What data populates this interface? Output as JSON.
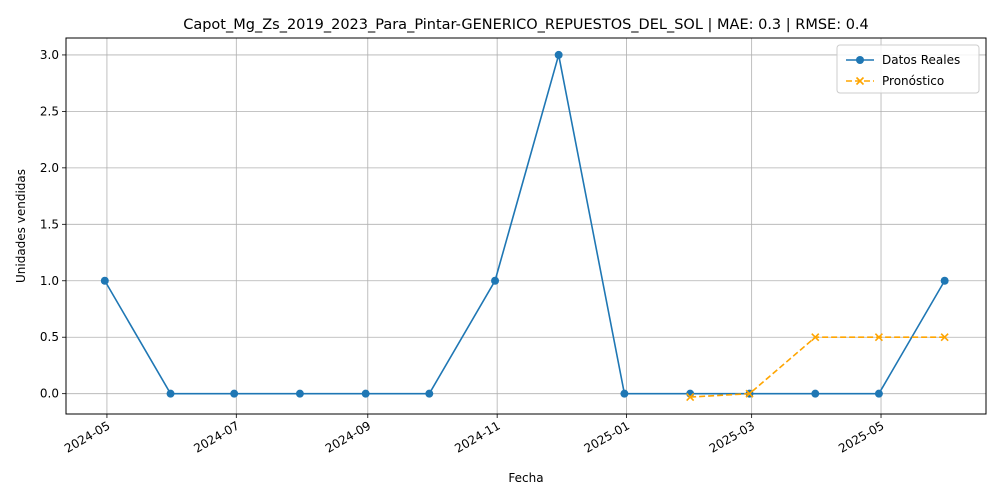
{
  "chart_data": {
    "type": "line",
    "title": "Capot_Mg_Zs_2019_2023_Para_Pintar-GENERICO_REPUESTOS_DEL_SOL | MAE: 0.3 | RMSE: 0.4",
    "xlabel": "Fecha",
    "ylabel": "Unidades vendidas",
    "ylim": [
      -0.18,
      3.15
    ],
    "grid": true,
    "legend": "top-right",
    "x_ticks": [
      "2024-05",
      "2024-07",
      "2024-09",
      "2024-11",
      "2025-01",
      "2025-03",
      "2025-05"
    ],
    "y_ticks": [
      "0.0",
      "0.5",
      "1.0",
      "1.5",
      "2.0",
      "2.5",
      "3.0"
    ],
    "series": [
      {
        "name": "Datos Reales",
        "color": "#1f77b4",
        "style": "solid",
        "marker": "circle",
        "x": [
          "2024-04-30",
          "2024-05-31",
          "2024-06-30",
          "2024-07-31",
          "2024-08-31",
          "2024-09-30",
          "2024-10-31",
          "2024-11-30",
          "2024-12-31",
          "2025-01-31",
          "2025-02-28",
          "2025-03-31",
          "2025-04-30",
          "2025-05-31"
        ],
        "y": [
          1,
          0,
          0,
          0,
          0,
          0,
          1,
          3,
          0,
          0,
          0,
          0,
          0,
          1
        ]
      },
      {
        "name": "Pronóstico",
        "color": "#ffa500",
        "style": "dashed",
        "marker": "x",
        "x": [
          "2025-01-31",
          "2025-02-28",
          "2025-03-31",
          "2025-04-30",
          "2025-05-31"
        ],
        "y": [
          -0.03,
          0.0,
          0.5,
          0.5,
          0.5
        ]
      }
    ]
  }
}
